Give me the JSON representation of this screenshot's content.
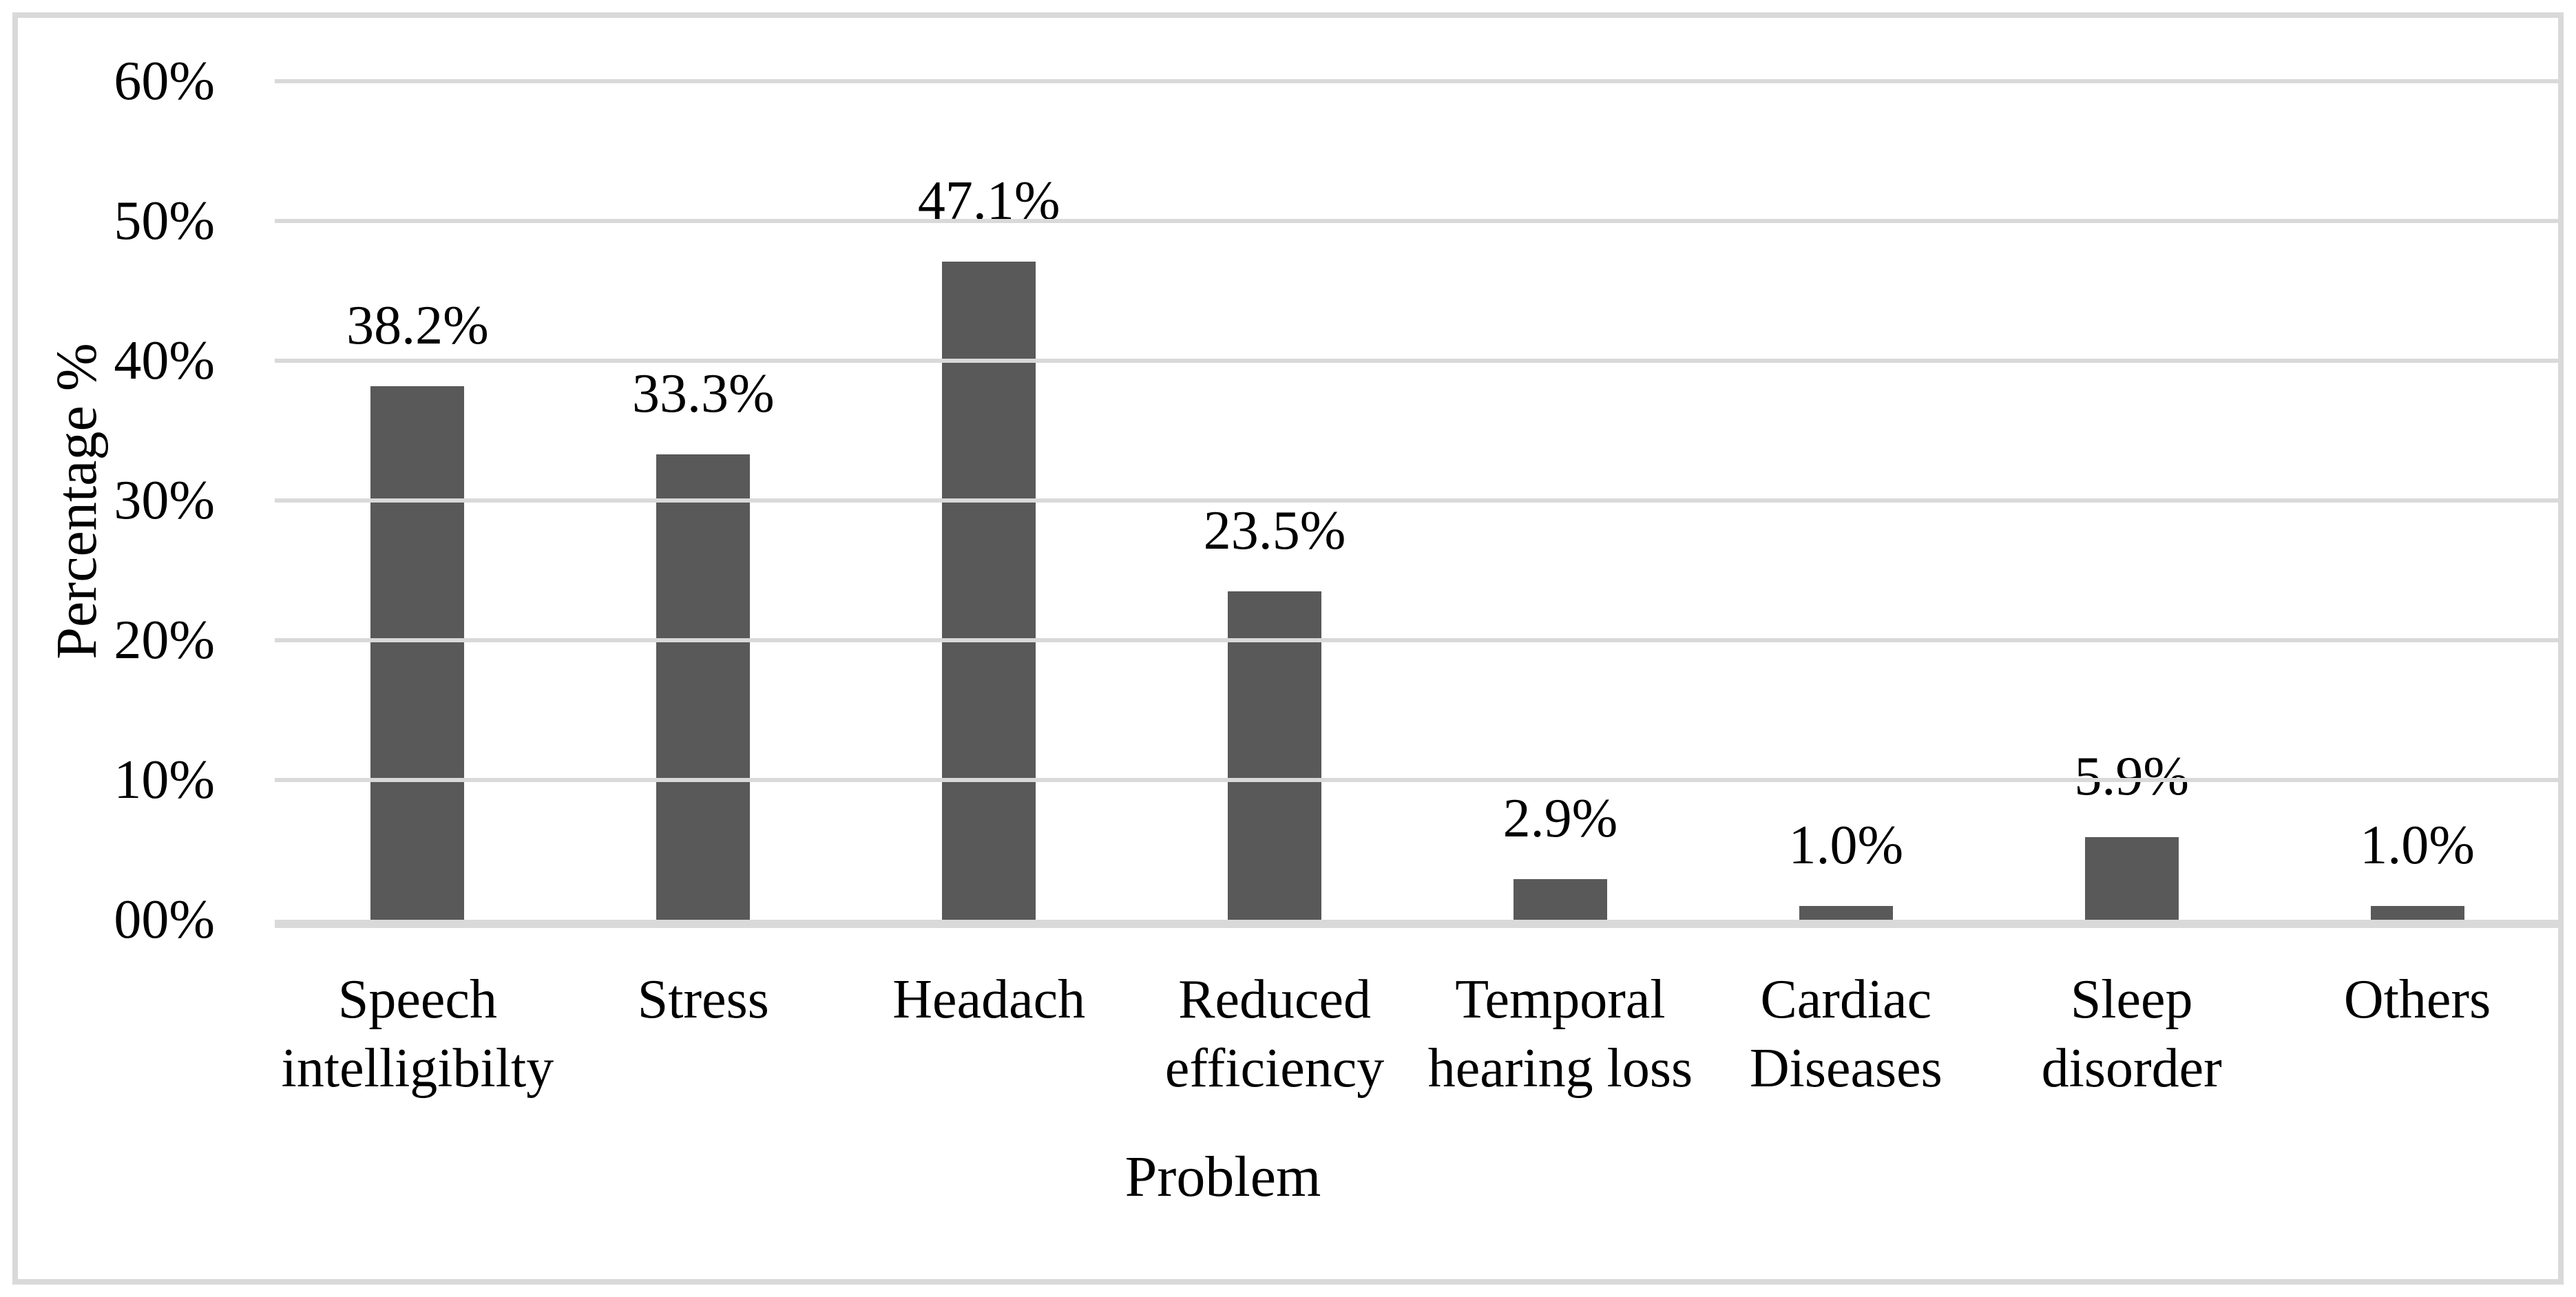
{
  "figure": {
    "y_axis_title": "Percentage %",
    "x_axis_title": "Problem"
  },
  "chart_data": {
    "type": "bar",
    "title": "",
    "xlabel": "Problem",
    "ylabel": "Percentage %",
    "ylim": [
      0,
      60
    ],
    "grid": true,
    "legend": false,
    "y_ticks": [
      "60%",
      "50%",
      "40%",
      "30%",
      "20%",
      "10%",
      "00%"
    ],
    "categories": [
      "Speech intelligibilty",
      "Stress",
      "Headach",
      "Reduced efficiency",
      "Temporal hearing loss",
      "Cardiac Diseases",
      "Sleep disorder",
      "Others"
    ],
    "category_lines": [
      [
        "Speech",
        "intelligibilty"
      ],
      [
        "Stress"
      ],
      [
        "Headach"
      ],
      [
        "Reduced",
        "efficiency"
      ],
      [
        "Temporal",
        "hearing loss"
      ],
      [
        "Cardiac",
        "Diseases"
      ],
      [
        "Sleep",
        "disorder"
      ],
      [
        "Others"
      ]
    ],
    "values": [
      38.2,
      33.3,
      47.1,
      23.5,
      2.9,
      1.0,
      5.9,
      1.0
    ],
    "value_labels": [
      "38.2%",
      "33.3%",
      "47.1%",
      "23.5%",
      "2.9%",
      "1.0%",
      "5.9%",
      "1.0%"
    ],
    "colors": {
      "bar": "#595959",
      "gridline": "#d9d9d9",
      "frame_border": "#d9d9d9",
      "text": "#000000",
      "background": "#ffffff"
    }
  }
}
